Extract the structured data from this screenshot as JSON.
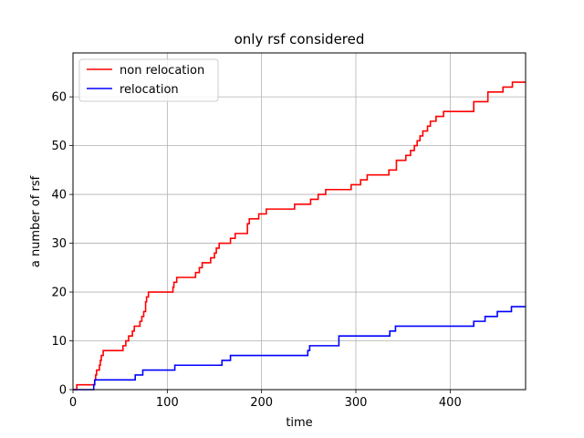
{
  "chart_data": {
    "type": "line",
    "title": "only rsf considered",
    "xlabel": "time",
    "ylabel": "a number of rsf",
    "xlim": [
      0,
      480
    ],
    "ylim": [
      0,
      69
    ],
    "xticks": [
      0,
      100,
      200,
      300,
      400
    ],
    "yticks": [
      0,
      10,
      20,
      30,
      40,
      50,
      60
    ],
    "grid": true,
    "legend_position": "top-left",
    "step": true,
    "series": [
      {
        "name": "non relocation",
        "color": "#ff0000",
        "points": [
          [
            0,
            0
          ],
          [
            4,
            1
          ],
          [
            23,
            2
          ],
          [
            24,
            3
          ],
          [
            25,
            4
          ],
          [
            28,
            5
          ],
          [
            29,
            6
          ],
          [
            30,
            7
          ],
          [
            32,
            8
          ],
          [
            53,
            9
          ],
          [
            56,
            10
          ],
          [
            59,
            11
          ],
          [
            63,
            12
          ],
          [
            65,
            13
          ],
          [
            71,
            14
          ],
          [
            73,
            15
          ],
          [
            75,
            16
          ],
          [
            77,
            18
          ],
          [
            78,
            19
          ],
          [
            80,
            20
          ],
          [
            106,
            21
          ],
          [
            107,
            22
          ],
          [
            110,
            23
          ],
          [
            130,
            24
          ],
          [
            134,
            25
          ],
          [
            137,
            26
          ],
          [
            146,
            27
          ],
          [
            150,
            28
          ],
          [
            152,
            29
          ],
          [
            155,
            30
          ],
          [
            167,
            31
          ],
          [
            172,
            32
          ],
          [
            185,
            34
          ],
          [
            187,
            35
          ],
          [
            197,
            36
          ],
          [
            205,
            37
          ],
          [
            235,
            38
          ],
          [
            252,
            39
          ],
          [
            260,
            40
          ],
          [
            268,
            41
          ],
          [
            295,
            42
          ],
          [
            305,
            43
          ],
          [
            312,
            44
          ],
          [
            335,
            45
          ],
          [
            343,
            47
          ],
          [
            353,
            48
          ],
          [
            358,
            49
          ],
          [
            362,
            50
          ],
          [
            365,
            51
          ],
          [
            368,
            52
          ],
          [
            371,
            53
          ],
          [
            376,
            54
          ],
          [
            379,
            55
          ],
          [
            385,
            56
          ],
          [
            393,
            57
          ],
          [
            425,
            59
          ],
          [
            440,
            61
          ],
          [
            456,
            62
          ],
          [
            466,
            63
          ],
          [
            480,
            63
          ]
        ]
      },
      {
        "name": "relocation",
        "color": "#0000ff",
        "points": [
          [
            0,
            0
          ],
          [
            22,
            1
          ],
          [
            23,
            2
          ],
          [
            66,
            3
          ],
          [
            74,
            4
          ],
          [
            108,
            5
          ],
          [
            158,
            6
          ],
          [
            167,
            7
          ],
          [
            249,
            8
          ],
          [
            251,
            9
          ],
          [
            282,
            11
          ],
          [
            336,
            12
          ],
          [
            342,
            13
          ],
          [
            425,
            14
          ],
          [
            437,
            15
          ],
          [
            450,
            16
          ],
          [
            465,
            17
          ],
          [
            480,
            17
          ]
        ]
      }
    ]
  }
}
